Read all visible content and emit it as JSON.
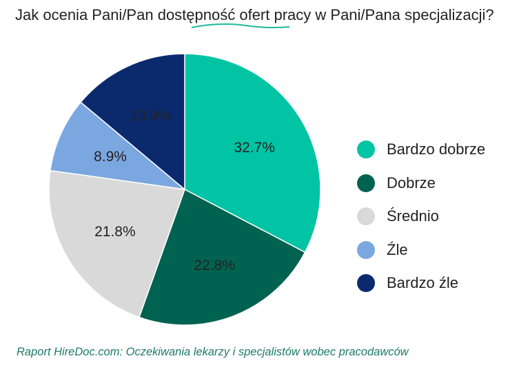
{
  "chart_data": {
    "type": "pie",
    "title": "Jak ocenia Pani/Pan dostępność ofert pracy w Pani/Pana specjalizacji?",
    "title_parts": [
      "Jak ocenia Pani/Pan ",
      "dostępność",
      " ofert pracy w Pani/Pana specjalizacji?"
    ],
    "categories": [
      "Bardzo dobrze",
      "Dobrze",
      "Średnio",
      "Źle",
      "Bardzo źle"
    ],
    "values": [
      32.7,
      22.8,
      21.8,
      8.9,
      13.9
    ],
    "data_labels": [
      "32.7%",
      "22.8%",
      "21.8%",
      "8.9%",
      "13.9%"
    ],
    "colors": [
      "#00C4A3",
      "#006250",
      "#D9D9D9",
      "#7BA7E0",
      "#0B2A6E"
    ],
    "legend_position": "right",
    "source": "Raport HireDoc.com: Oczekiwania lekarzy i specjalistów wobec pracodawców"
  },
  "accent_color": "#1FB89E"
}
